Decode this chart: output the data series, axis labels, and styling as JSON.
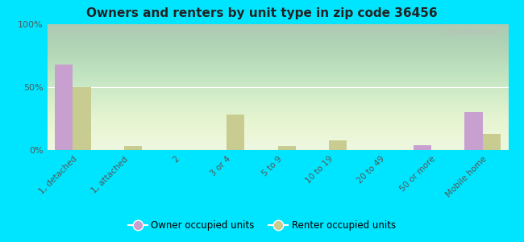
{
  "title": "Owners and renters by unit type in zip code 36456",
  "categories": [
    "1, detached",
    "1, attached",
    "2",
    "3 or 4",
    "5 to 9",
    "10 to 19",
    "20 to 49",
    "50 or more",
    "Mobile home"
  ],
  "owner_values": [
    68,
    0,
    0,
    0,
    0,
    0,
    0,
    4,
    30
  ],
  "renter_values": [
    50,
    3,
    0,
    28,
    3,
    8,
    0,
    0,
    13
  ],
  "owner_color": "#c8a0d0",
  "renter_color": "#c8cc90",
  "plot_bg_color": "#e8f5e0",
  "outer_bg": "#00e5ff",
  "ylim": [
    0,
    100
  ],
  "yticks": [
    0,
    50,
    100
  ],
  "ytick_labels": [
    "0%",
    "50%",
    "100%"
  ],
  "bar_width": 0.35,
  "legend_owner": "Owner occupied units",
  "legend_renter": "Renter occupied units",
  "watermark": "City-Data.com"
}
